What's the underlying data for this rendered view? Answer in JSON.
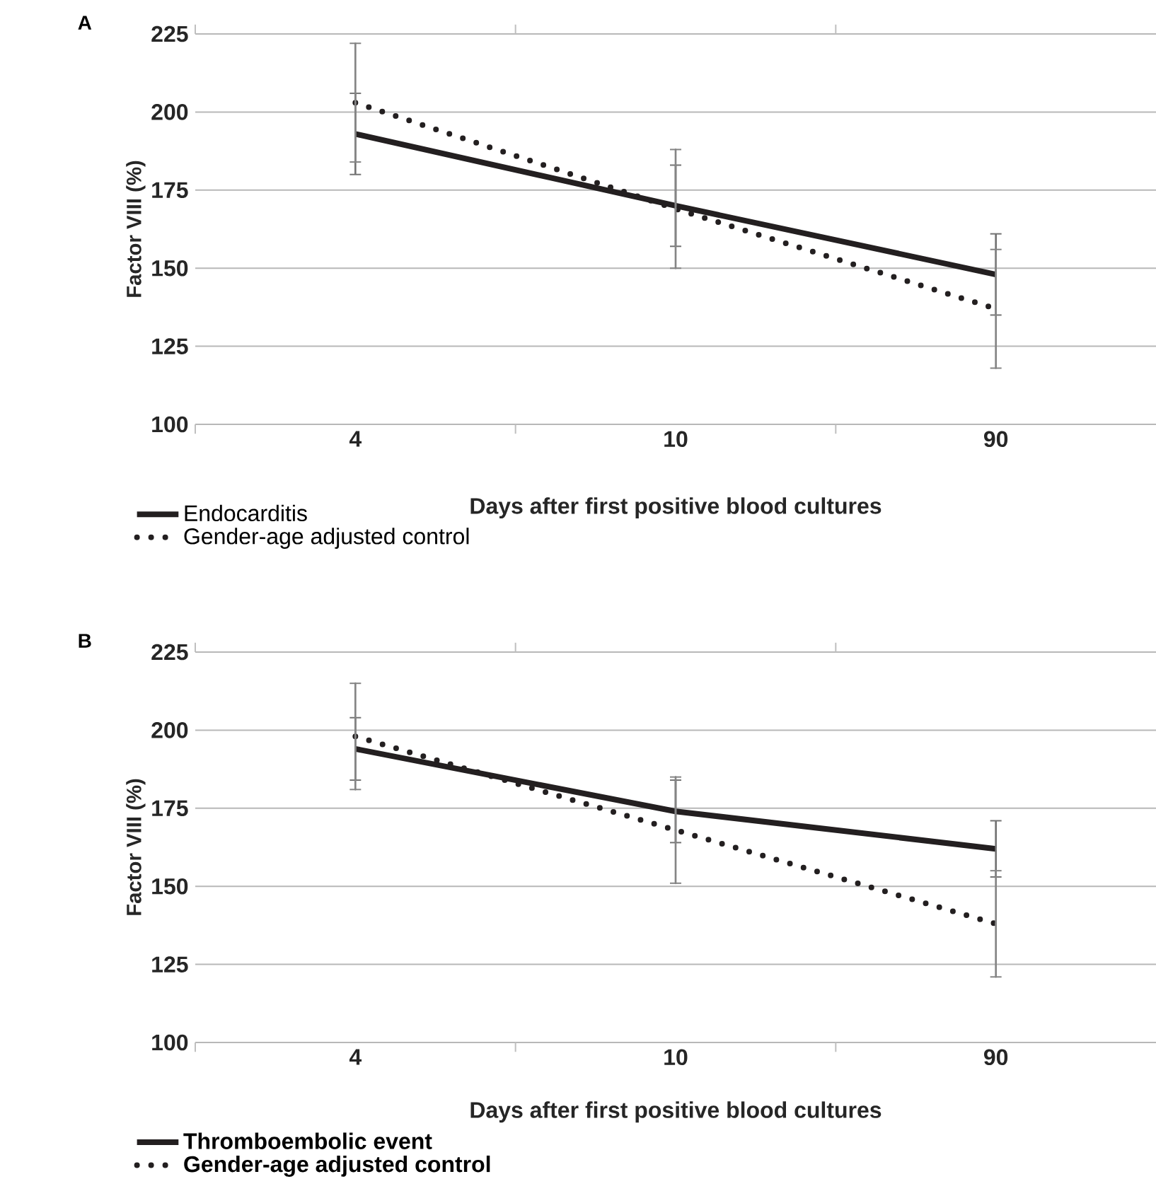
{
  "chart_data": [
    {
      "type": "line",
      "title": "A",
      "xlabel": "Days after first positive blood cultures",
      "ylabel": "Factor VIII (%)",
      "categories": [
        "4",
        "10",
        "90"
      ],
      "ylim": [
        100,
        225
      ],
      "yticks": [
        100,
        125,
        150,
        175,
        200,
        225
      ],
      "grid": "y",
      "legend": "bottom left",
      "series": [
        {
          "name": "Endocarditis",
          "color": "#231f20",
          "line_style": "solid",
          "values": [
            193,
            170,
            148
          ],
          "errors": [
            13,
            13,
            13
          ]
        },
        {
          "name": "Gender-age adjusted control",
          "color": "#231f20",
          "line_style": "dotted",
          "values": [
            203,
            169,
            137
          ],
          "errors": [
            19,
            19,
            19
          ]
        }
      ]
    },
    {
      "type": "line",
      "title": "B",
      "xlabel": "Days after first positive blood cultures",
      "ylabel": "Factor VIII (%)",
      "categories": [
        "4",
        "10",
        "90"
      ],
      "ylim": [
        100,
        225
      ],
      "yticks": [
        100,
        125,
        150,
        175,
        200,
        225
      ],
      "grid": "y",
      "legend": "bottom left",
      "series": [
        {
          "name": "Thromboembolic event",
          "color": "#231f20",
          "line_style": "solid",
          "values": [
            194,
            174,
            162
          ],
          "errors": [
            10,
            10,
            9
          ]
        },
        {
          "name": "Gender-age adjusted control",
          "color": "#231f20",
          "line_style": "dotted",
          "values": [
            198,
            168,
            138
          ],
          "errors": [
            17,
            17,
            17
          ]
        }
      ]
    }
  ]
}
